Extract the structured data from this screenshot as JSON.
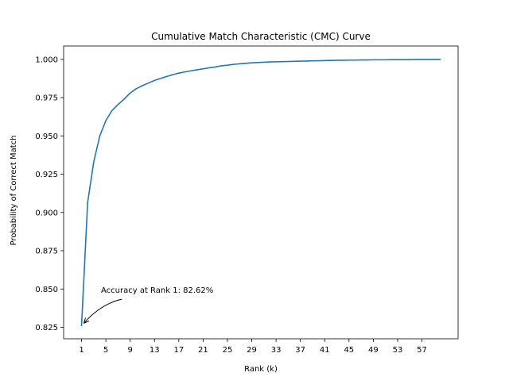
{
  "chart_data": {
    "type": "line",
    "title": "Cumulative Match Characteristic (CMC) Curve",
    "xlabel": "Rank (k)",
    "ylabel": "Probability of Correct Match",
    "xlim": [
      -1.95,
      62.95
    ],
    "ylim": [
      0.8175,
      1.0087
    ],
    "grid": false,
    "x_ticks": [
      1,
      5,
      9,
      13,
      17,
      21,
      25,
      29,
      33,
      37,
      41,
      45,
      49,
      53,
      57
    ],
    "y_ticks": [
      0.825,
      0.85,
      0.875,
      0.9,
      0.925,
      0.95,
      0.975,
      1.0
    ],
    "y_tick_labels": [
      "0.825",
      "0.850",
      "0.875",
      "0.900",
      "0.925",
      "0.950",
      "0.975",
      "1.000"
    ],
    "series": [
      {
        "color": "#1f77b4",
        "x": [
          1,
          2,
          3,
          4,
          5,
          6,
          7,
          8,
          9,
          10,
          11,
          12,
          13,
          14,
          15,
          16,
          17,
          18,
          19,
          20,
          21,
          22,
          23,
          24,
          25,
          26,
          27,
          28,
          29,
          30,
          31,
          32,
          33,
          34,
          35,
          36,
          37,
          38,
          39,
          40,
          41,
          42,
          43,
          44,
          45,
          46,
          47,
          48,
          49,
          50,
          51,
          52,
          53,
          54,
          55,
          56,
          57,
          58,
          59,
          60
        ],
        "values": [
          0.8262,
          0.9065,
          0.933,
          0.95,
          0.96,
          0.9665,
          0.9705,
          0.974,
          0.978,
          0.9808,
          0.9828,
          0.9845,
          0.9862,
          0.9875,
          0.9888,
          0.99,
          0.991,
          0.9918,
          0.9925,
          0.9932,
          0.9938,
          0.9945,
          0.995,
          0.9958,
          0.9962,
          0.9967,
          0.9971,
          0.9974,
          0.9977,
          0.9979,
          0.9981,
          0.9983,
          0.9984,
          0.9985,
          0.9986,
          0.9987,
          0.9988,
          0.9989,
          0.999,
          0.9991,
          0.9992,
          0.9993,
          0.9994,
          0.9994,
          0.9995,
          0.9995,
          0.9996,
          0.9996,
          0.9997,
          0.9997,
          0.9997,
          0.9998,
          0.9998,
          0.9998,
          0.9998,
          0.9999,
          0.9999,
          0.9999,
          1.0,
          1.0
        ]
      }
    ],
    "annotations": [
      {
        "text": "Accuracy at Rank 1: 82.62%",
        "point": [
          1,
          0.8262
        ],
        "text_at": [
          4.2,
          0.8475
        ]
      }
    ]
  }
}
